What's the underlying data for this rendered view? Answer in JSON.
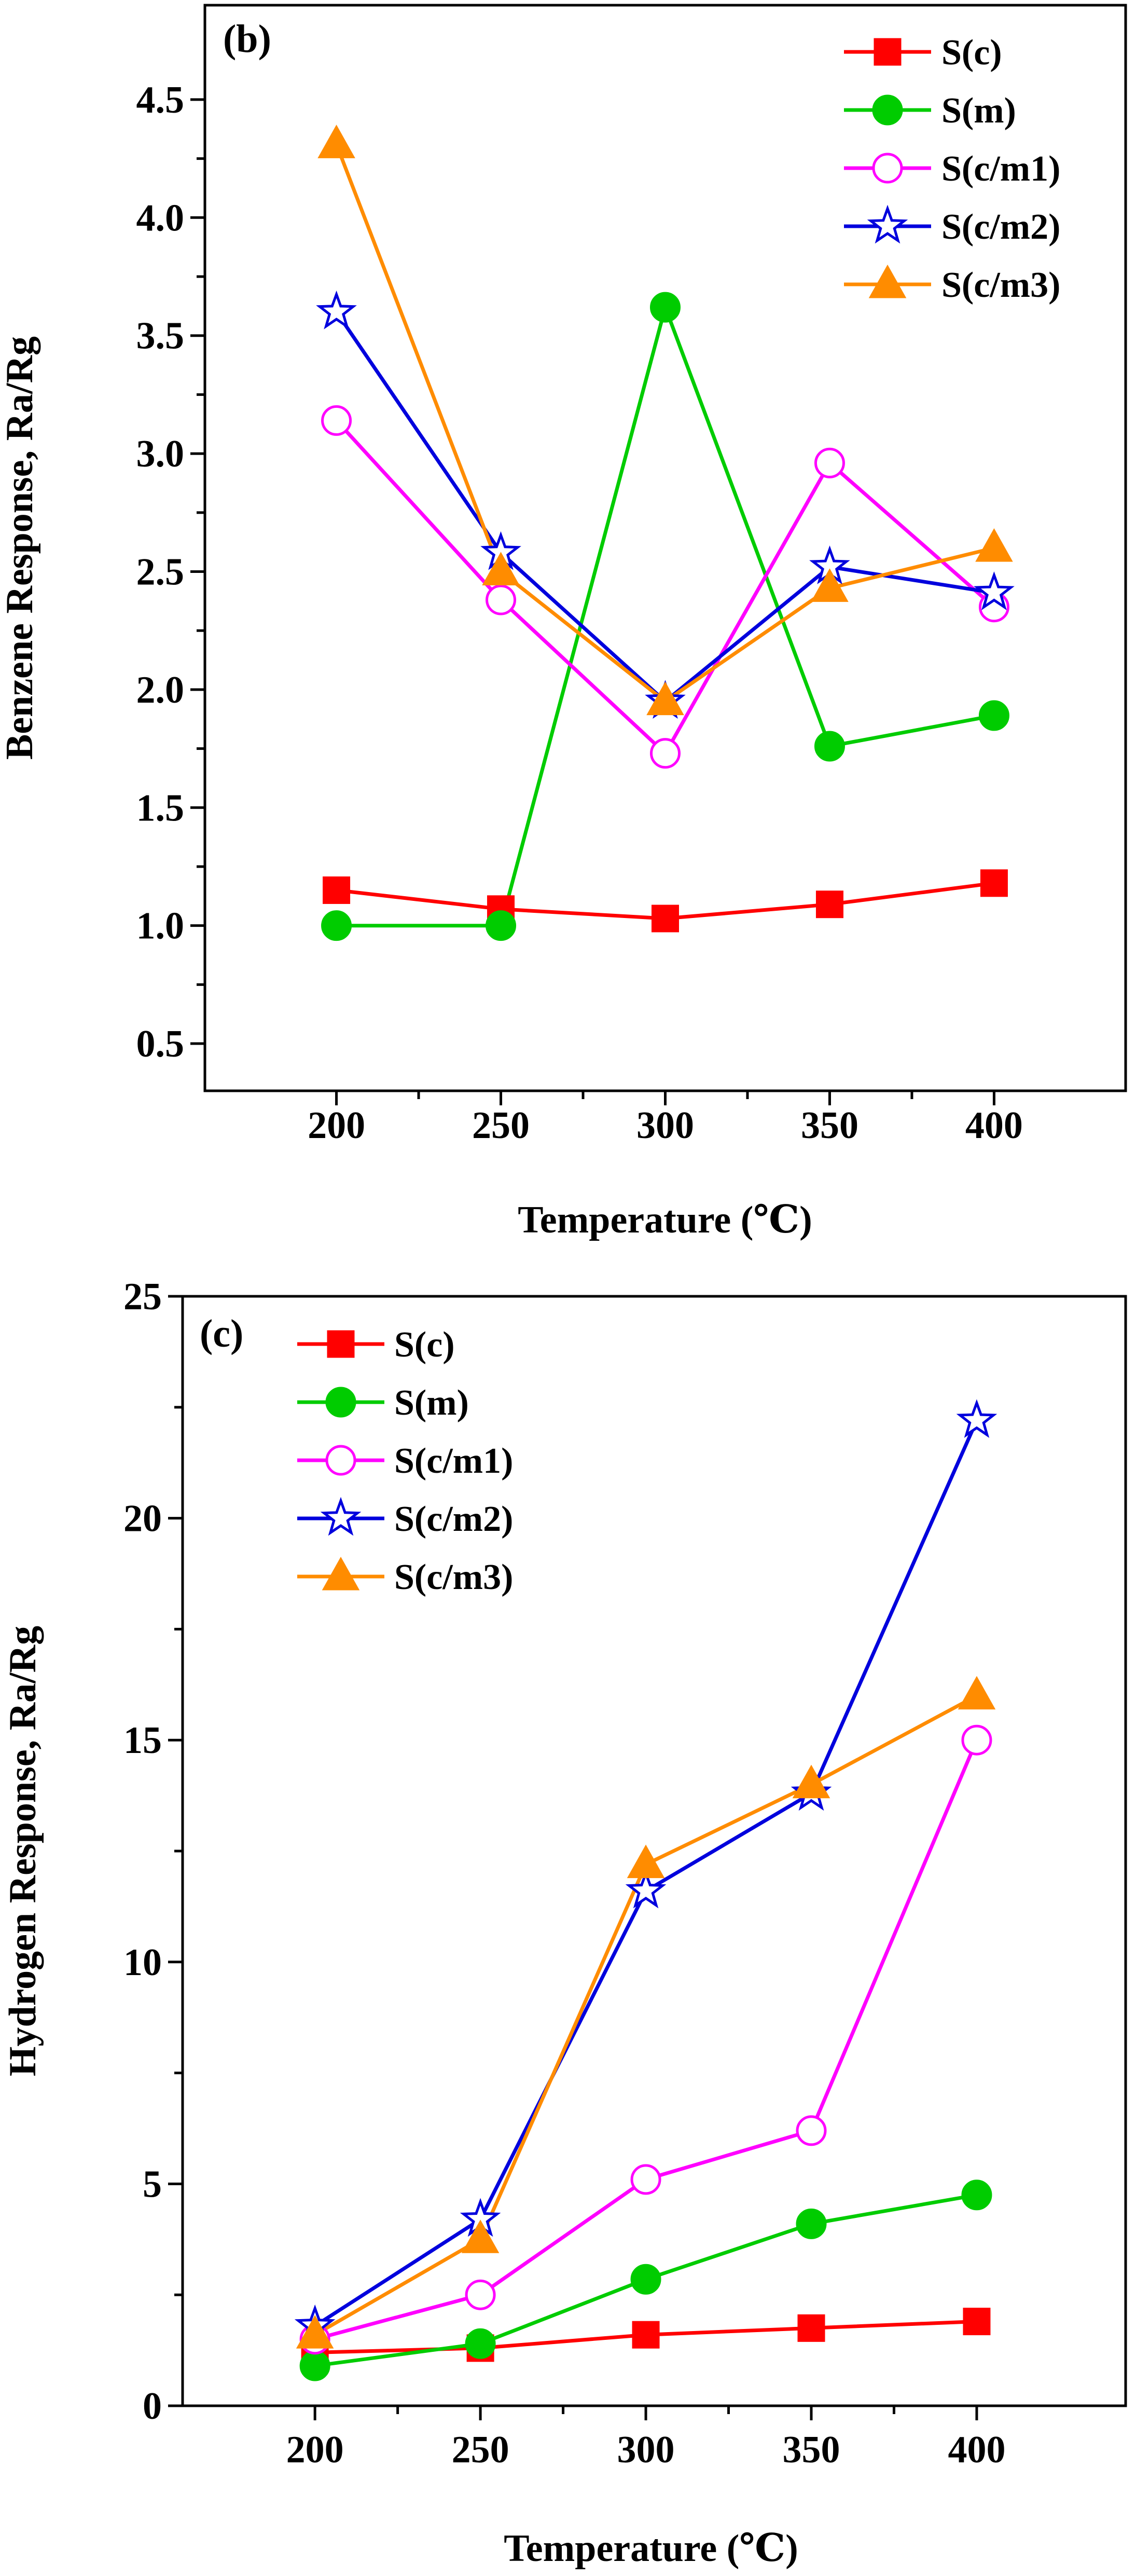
{
  "chart_data": [
    {
      "type": "line",
      "panel_label": "(b)",
      "title": "",
      "xlabel": "Temperature (℃)",
      "ylabel": "Benzene Response, Ra/Rg",
      "xlim": [
        160,
        440
      ],
      "ylim": [
        0.3,
        4.9
      ],
      "xticks": [
        200,
        250,
        300,
        350,
        400
      ],
      "yticks": [
        0.5,
        1.0,
        1.5,
        2.0,
        2.5,
        3.0,
        3.5,
        4.0,
        4.5
      ],
      "ytick_labels": [
        "0.5",
        "1.0",
        "1.5",
        "2.0",
        "2.5",
        "3.0",
        "3.5",
        "4.0",
        "4.5"
      ],
      "legend_position": "top-right",
      "x": [
        200,
        250,
        300,
        350,
        400
      ],
      "series": [
        {
          "name": "S(c)",
          "color": "#ff0000",
          "marker": "square",
          "filled": true,
          "values": [
            1.15,
            1.07,
            1.03,
            1.09,
            1.18
          ]
        },
        {
          "name": "S(m)",
          "color": "#00cc00",
          "marker": "circle",
          "filled": true,
          "values": [
            1.0,
            1.0,
            3.62,
            1.76,
            1.89
          ]
        },
        {
          "name": "S(c/m1)",
          "color": "#ff00ff",
          "marker": "circle",
          "filled": false,
          "values": [
            3.14,
            2.38,
            1.73,
            2.96,
            2.35
          ]
        },
        {
          "name": "S(c/m2)",
          "color": "#0000dd",
          "marker": "star",
          "filled": false,
          "values": [
            3.6,
            2.58,
            1.95,
            2.52,
            2.41
          ]
        },
        {
          "name": "S(c/m3)",
          "color": "#ff8c00",
          "marker": "triangle",
          "filled": true,
          "values": [
            4.31,
            2.5,
            1.95,
            2.43,
            2.6
          ]
        }
      ]
    },
    {
      "type": "line",
      "panel_label": "(c)",
      "title": "",
      "xlabel": "Temperature (℃)",
      "ylabel": "Hydrogen Response, Ra/Rg",
      "xlim": [
        160,
        445
      ],
      "ylim": [
        0,
        25
      ],
      "xticks": [
        200,
        250,
        300,
        350,
        400
      ],
      "yticks": [
        0,
        5,
        10,
        15,
        20,
        25
      ],
      "ytick_labels": [
        "0",
        "5",
        "10",
        "15",
        "20",
        "25"
      ],
      "legend_position": "top-left",
      "x": [
        200,
        250,
        300,
        350,
        400
      ],
      "series": [
        {
          "name": "S(c)",
          "color": "#ff0000",
          "marker": "square",
          "filled": true,
          "values": [
            1.2,
            1.3,
            1.6,
            1.75,
            1.9
          ]
        },
        {
          "name": "S(m)",
          "color": "#00cc00",
          "marker": "circle",
          "filled": true,
          "values": [
            0.9,
            1.4,
            2.85,
            4.1,
            4.75
          ]
        },
        {
          "name": "S(c/m1)",
          "color": "#ff00ff",
          "marker": "circle",
          "filled": false,
          "values": [
            1.5,
            2.5,
            5.1,
            6.2,
            15.0
          ]
        },
        {
          "name": "S(c/m2)",
          "color": "#0000dd",
          "marker": "star",
          "filled": false,
          "values": [
            1.8,
            4.2,
            11.6,
            13.8,
            22.2
          ]
        },
        {
          "name": "S(c/m3)",
          "color": "#ff8c00",
          "marker": "triangle",
          "filled": true,
          "values": [
            1.6,
            3.75,
            12.2,
            14.0,
            16.0
          ]
        }
      ]
    }
  ]
}
